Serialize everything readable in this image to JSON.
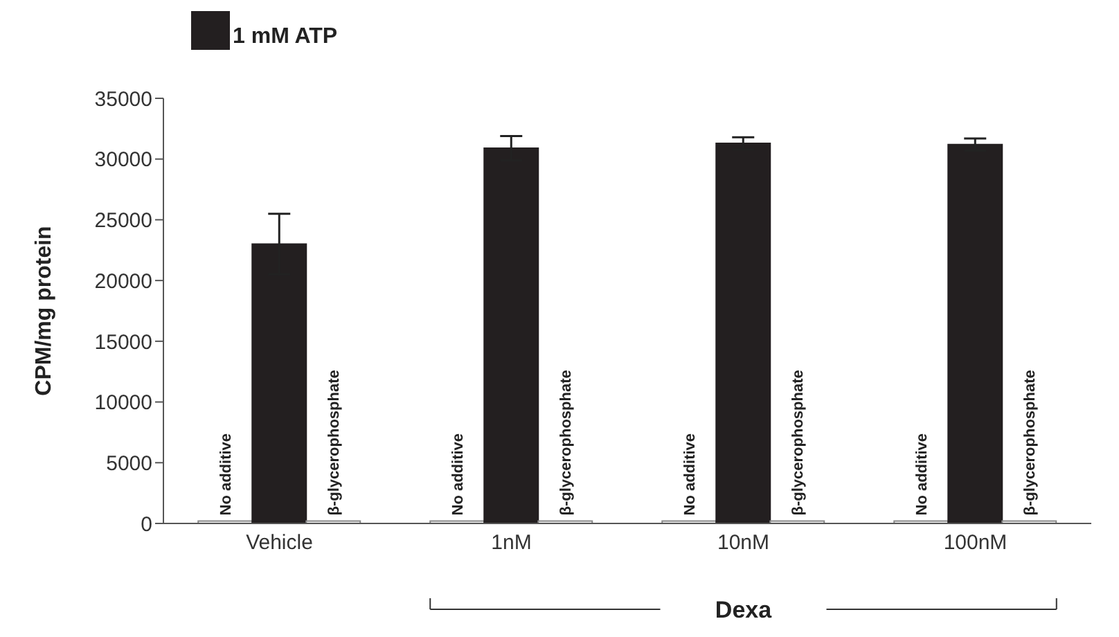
{
  "chart_data": {
    "type": "bar",
    "ylabel": "CPM/mg protein",
    "categories": [
      "Vehicle",
      "1nM",
      "10nM",
      "100nM"
    ],
    "series": [
      {
        "name": "No additive",
        "color": "#f2f2f2",
        "values": [
          200,
          200,
          200,
          200
        ]
      },
      {
        "name": "1 mM ATP",
        "color": "#231f20",
        "values": [
          23000,
          30900,
          31300,
          31200
        ],
        "errors": [
          2500,
          1000,
          500,
          500
        ]
      },
      {
        "name": "β-glycerophosphate",
        "color": "#f2f2f2",
        "values": [
          200,
          200,
          200,
          200
        ]
      }
    ],
    "ylim": [
      0,
      35000
    ],
    "yticks": [
      0,
      5000,
      10000,
      15000,
      20000,
      25000,
      30000,
      35000
    ],
    "legend": "top left",
    "annotations": [
      "Dexa"
    ]
  }
}
